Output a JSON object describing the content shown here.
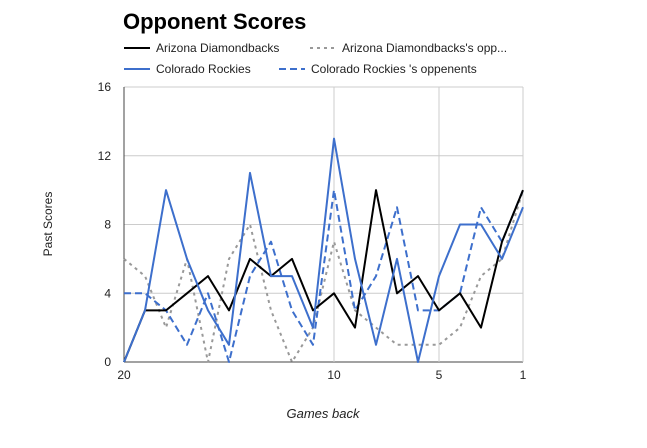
{
  "chart_data": {
    "type": "line",
    "title": "Opponent Scores",
    "xlabel": "Games back",
    "ylabel": "Past Scores",
    "x": [
      20,
      19,
      18,
      17,
      16,
      15,
      14,
      13,
      12,
      11,
      10,
      9,
      8,
      7,
      6,
      5,
      4,
      3,
      2,
      1
    ],
    "x_ticks": [
      20,
      10,
      5,
      1
    ],
    "xlim": [
      20,
      1
    ],
    "y_ticks": [
      0,
      4,
      8,
      12,
      16
    ],
    "ylim": [
      0,
      16
    ],
    "grid": true,
    "legend_position": "top",
    "series": [
      {
        "name": "Arizona Diamondbacks",
        "color": "#000000",
        "style": "solid",
        "values": [
          0,
          3,
          3,
          4,
          5,
          3,
          6,
          5,
          6,
          3,
          4,
          2,
          10,
          4,
          5,
          3,
          4,
          2,
          7,
          10
        ]
      },
      {
        "name": "Arizona Diamondbacks's opp...",
        "color": "#999999",
        "style": "dotted",
        "values": [
          6,
          5,
          2,
          6,
          0,
          6,
          8,
          3,
          0,
          2,
          7,
          3,
          2,
          1,
          1,
          1,
          2,
          5,
          6,
          10
        ]
      },
      {
        "name": "Colorado Rockies",
        "color": "#3d6fcc",
        "style": "solid",
        "values": [
          0,
          3,
          10,
          6,
          3,
          1,
          11,
          5,
          5,
          2,
          13,
          6,
          1,
          6,
          0,
          5,
          8,
          8,
          6,
          9
        ]
      },
      {
        "name": "Colorado Rockies 's oppenents",
        "color": "#3d6fcc",
        "style": "dashed",
        "values": [
          4,
          4,
          3,
          1,
          4,
          0,
          5,
          7,
          3,
          1,
          10,
          3,
          5,
          9,
          3,
          3,
          4,
          9,
          7,
          10
        ]
      }
    ]
  }
}
